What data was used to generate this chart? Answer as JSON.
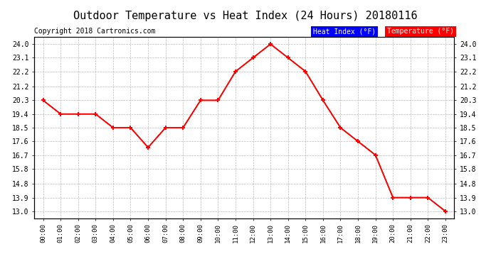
{
  "title": "Outdoor Temperature vs Heat Index (24 Hours) 20180116",
  "copyright": "Copyright 2018 Cartronics.com",
  "x_labels": [
    "00:00",
    "01:00",
    "02:00",
    "03:00",
    "04:00",
    "05:00",
    "06:00",
    "07:00",
    "08:00",
    "09:00",
    "10:00",
    "11:00",
    "12:00",
    "13:00",
    "14:00",
    "15:00",
    "16:00",
    "17:00",
    "18:00",
    "19:00",
    "20:00",
    "21:00",
    "22:00",
    "23:00"
  ],
  "temperature": [
    20.3,
    19.4,
    19.4,
    19.4,
    18.5,
    18.5,
    17.2,
    18.5,
    18.5,
    20.3,
    20.3,
    22.2,
    23.1,
    24.0,
    23.1,
    22.2,
    20.3,
    18.5,
    17.6,
    16.7,
    13.9,
    13.9,
    13.9,
    13.0
  ],
  "heat_index": [
    20.3,
    19.4,
    19.4,
    19.4,
    18.5,
    18.5,
    17.2,
    18.5,
    18.5,
    20.3,
    20.3,
    22.2,
    23.1,
    24.0,
    23.1,
    22.2,
    20.3,
    18.5,
    17.6,
    16.7,
    13.9,
    13.9,
    13.9,
    13.0
  ],
  "y_ticks": [
    13.0,
    13.9,
    14.8,
    15.8,
    16.7,
    17.6,
    18.5,
    19.4,
    20.3,
    21.2,
    22.2,
    23.1,
    24.0
  ],
  "ylim": [
    12.55,
    24.45
  ],
  "temp_color": "#ff0000",
  "heat_index_color": "#ff0000",
  "bg_color": "#ffffff",
  "plot_bg_color": "#ffffff",
  "grid_color": "#aaaaaa",
  "title_fontsize": 11,
  "copyright_fontsize": 7,
  "legend_heat_bg": "#0000ff",
  "legend_temp_bg": "#ff0000",
  "legend_text_color": "#ffffff"
}
